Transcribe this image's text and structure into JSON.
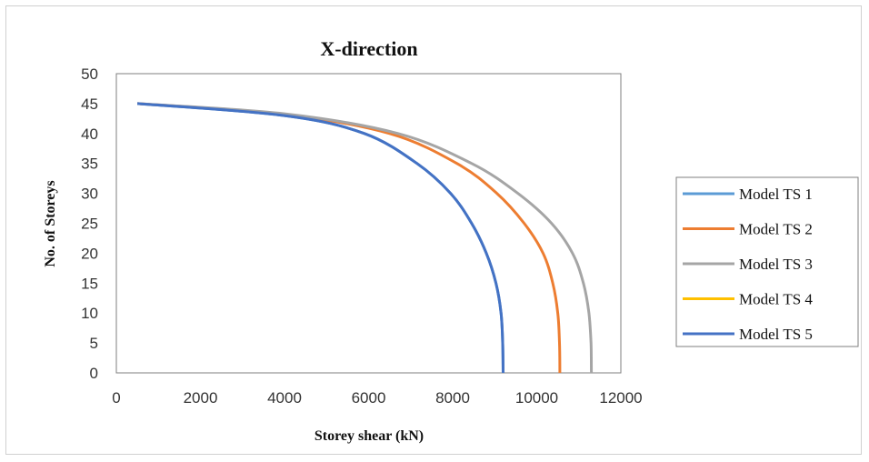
{
  "chart_data": {
    "type": "line",
    "title": "X-direction",
    "xlabel": "Storey  shear (kN)",
    "ylabel": "No. of Storeys",
    "xlim": [
      0,
      12000
    ],
    "ylim": [
      0,
      50
    ],
    "x_ticks": [
      "0",
      "2000",
      "4000",
      "6000",
      "8000",
      "10000",
      "12000"
    ],
    "y_ticks": [
      "0",
      "5",
      "10",
      "15",
      "20",
      "25",
      "30",
      "35",
      "40",
      "45",
      "50"
    ],
    "grid": false,
    "legend_position": "right",
    "series": [
      {
        "name": "Model TS 1",
        "color": "#5b9bd5",
        "points": [
          [
            9200,
            0
          ],
          [
            9190,
            5
          ],
          [
            9150,
            10
          ],
          [
            9030,
            15
          ],
          [
            8800,
            20
          ],
          [
            8450,
            25
          ],
          [
            7950,
            30
          ],
          [
            7150,
            35
          ],
          [
            5900,
            40
          ],
          [
            4000,
            43
          ],
          [
            500,
            45
          ]
        ]
      },
      {
        "name": "Model TS 2",
        "color": "#ed7d31",
        "points": [
          [
            10550,
            0
          ],
          [
            10540,
            5
          ],
          [
            10500,
            10
          ],
          [
            10380,
            15
          ],
          [
            10150,
            20
          ],
          [
            9700,
            25
          ],
          [
            9050,
            30
          ],
          [
            8100,
            35
          ],
          [
            6500,
            40
          ],
          [
            4000,
            43.2
          ],
          [
            500,
            45
          ]
        ]
      },
      {
        "name": "Model TS 3",
        "color": "#a5a5a5",
        "points": [
          [
            11300,
            0
          ],
          [
            11290,
            5
          ],
          [
            11240,
            10
          ],
          [
            11110,
            15
          ],
          [
            10850,
            20
          ],
          [
            10350,
            25
          ],
          [
            9550,
            30
          ],
          [
            8450,
            35
          ],
          [
            6700,
            40
          ],
          [
            4000,
            43.3
          ],
          [
            500,
            45
          ]
        ]
      },
      {
        "name": "Model TS 4",
        "color": "#ffc000",
        "points": []
      },
      {
        "name": "Model TS 5",
        "color": "#4472c4",
        "points": [
          [
            9200,
            0
          ],
          [
            9190,
            5
          ],
          [
            9150,
            10
          ],
          [
            9030,
            15
          ],
          [
            8800,
            20
          ],
          [
            8450,
            25
          ],
          [
            7950,
            30
          ],
          [
            7150,
            35
          ],
          [
            5900,
            40
          ],
          [
            4000,
            43
          ],
          [
            500,
            45
          ]
        ]
      }
    ]
  }
}
